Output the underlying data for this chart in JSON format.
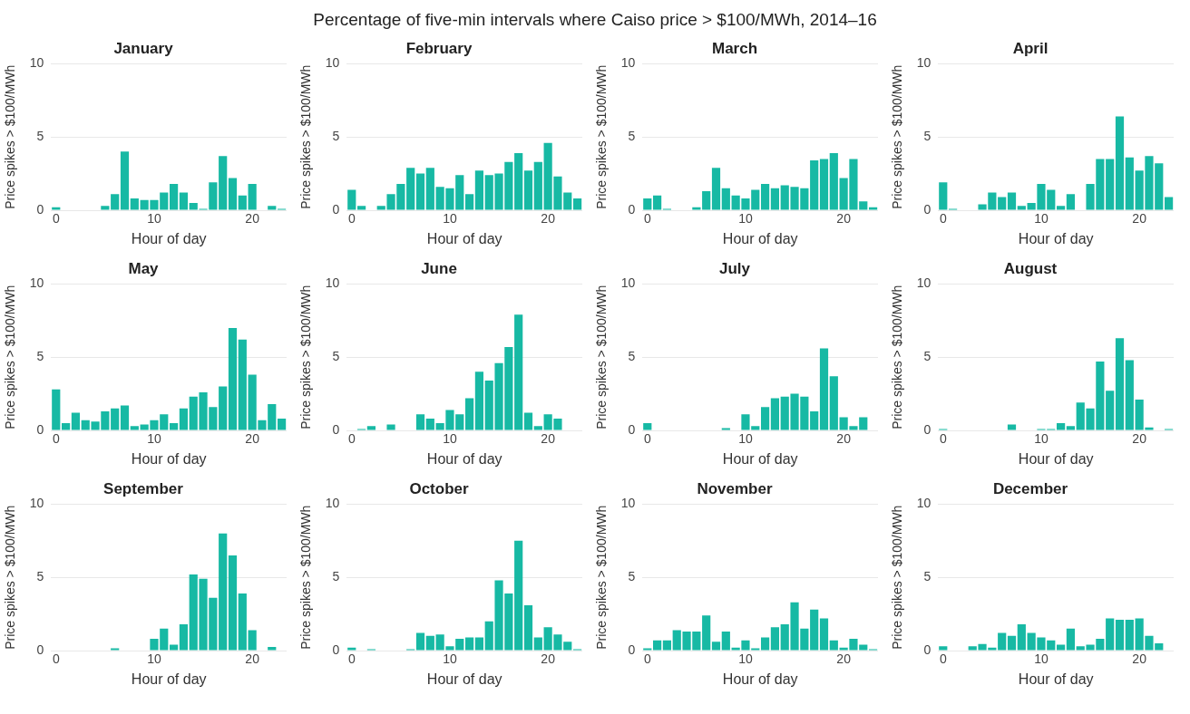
{
  "chart_data": [
    {
      "type": "bar",
      "annotations": [
        "Percentage of five-min intervals where Caiso price > $100/MWh, 2014–16"
      ],
      "title": "January",
      "xlabel": "Hour of day",
      "ylabel": "Price spikes > $100/MWh",
      "x": [
        0,
        1,
        2,
        3,
        4,
        5,
        6,
        7,
        8,
        9,
        10,
        11,
        12,
        13,
        14,
        15,
        16,
        17,
        18,
        19,
        20,
        21,
        22,
        23
      ],
      "values": [
        0.2,
        null,
        null,
        null,
        null,
        0.3,
        1.1,
        4.0,
        0.8,
        0.7,
        0.7,
        1.2,
        1.8,
        1.2,
        0.5,
        0.1,
        1.9,
        3.7,
        2.2,
        1.0,
        1.8,
        null,
        0.3,
        0.1
      ],
      "color": "#17b9a4",
      "xlim": [
        -0.5,
        23.5
      ],
      "xticks": [
        0,
        10,
        20
      ],
      "ylim": [
        0,
        10
      ],
      "yticks": [
        0,
        5,
        10
      ],
      "grid": "y"
    },
    {
      "type": "bar",
      "title": "February",
      "xlabel": "Hour of day",
      "ylabel": "Price spikes > $100/MWh",
      "x": [
        0,
        1,
        2,
        3,
        4,
        5,
        6,
        7,
        8,
        9,
        10,
        11,
        12,
        13,
        14,
        15,
        16,
        17,
        18,
        19,
        20,
        21,
        22,
        23
      ],
      "values": [
        1.4,
        0.3,
        null,
        0.3,
        1.1,
        1.8,
        2.9,
        2.5,
        2.9,
        1.6,
        1.5,
        2.4,
        1.1,
        2.7,
        2.4,
        2.5,
        3.3,
        3.9,
        2.7,
        3.3,
        4.6,
        2.3,
        1.2,
        0.8
      ],
      "color": "#17b9a4",
      "xlim": [
        -0.5,
        23.5
      ],
      "xticks": [
        0,
        10,
        20
      ],
      "ylim": [
        0,
        10
      ],
      "yticks": [
        0,
        5,
        10
      ],
      "grid": "y"
    },
    {
      "type": "bar",
      "title": "March",
      "xlabel": "Hour of day",
      "ylabel": "Price spikes > $100/MWh",
      "x": [
        0,
        1,
        2,
        3,
        4,
        5,
        6,
        7,
        8,
        9,
        10,
        11,
        12,
        13,
        14,
        15,
        16,
        17,
        18,
        19,
        20,
        21,
        22,
        23
      ],
      "values": [
        0.8,
        1.0,
        0.1,
        null,
        null,
        0.2,
        1.3,
        2.9,
        1.5,
        1.0,
        0.8,
        1.4,
        1.8,
        1.5,
        1.7,
        1.6,
        1.5,
        3.4,
        3.5,
        3.9,
        2.2,
        3.5,
        0.6,
        0.2
      ],
      "color": "#17b9a4",
      "xlim": [
        -0.5,
        23.5
      ],
      "xticks": [
        0,
        10,
        20
      ],
      "ylim": [
        0,
        10
      ],
      "yticks": [
        0,
        5,
        10
      ],
      "grid": "y"
    },
    {
      "type": "bar",
      "title": "April",
      "xlabel": "Hour of day",
      "ylabel": "Price spikes > $100/MWh",
      "x": [
        0,
        1,
        2,
        3,
        4,
        5,
        6,
        7,
        8,
        9,
        10,
        11,
        12,
        13,
        14,
        15,
        16,
        17,
        18,
        19,
        20,
        21,
        22,
        23
      ],
      "values": [
        1.9,
        0.1,
        null,
        null,
        0.4,
        1.2,
        0.9,
        1.2,
        0.3,
        0.5,
        1.8,
        1.4,
        0.3,
        1.1,
        null,
        1.8,
        3.5,
        3.5,
        6.4,
        3.6,
        2.7,
        3.7,
        3.2,
        0.9
      ],
      "color": "#17b9a4",
      "xlim": [
        -0.5,
        23.5
      ],
      "xticks": [
        0,
        10,
        20
      ],
      "ylim": [
        0,
        10
      ],
      "yticks": [
        0,
        5,
        10
      ],
      "grid": "y"
    },
    {
      "type": "bar",
      "title": "May",
      "xlabel": "Hour of day",
      "ylabel": "Price spikes > $100/MWh",
      "x": [
        0,
        1,
        2,
        3,
        4,
        5,
        6,
        7,
        8,
        9,
        10,
        11,
        12,
        13,
        14,
        15,
        16,
        17,
        18,
        19,
        20,
        21,
        22,
        23
      ],
      "values": [
        2.8,
        0.5,
        1.2,
        0.7,
        0.6,
        1.3,
        1.5,
        1.7,
        0.3,
        0.4,
        0.7,
        1.1,
        0.5,
        1.5,
        2.3,
        2.6,
        1.6,
        3.0,
        7.0,
        6.2,
        3.8,
        0.7,
        1.8,
        0.8
      ],
      "color": "#17b9a4",
      "xlim": [
        -0.5,
        23.5
      ],
      "xticks": [
        0,
        10,
        20
      ],
      "ylim": [
        0,
        10
      ],
      "yticks": [
        0,
        5,
        10
      ],
      "grid": "y"
    },
    {
      "type": "bar",
      "title": "June",
      "xlabel": "Hour of day",
      "ylabel": "Price spikes > $100/MWh",
      "x": [
        1,
        2,
        3,
        4,
        5,
        6,
        7,
        8,
        9,
        10,
        11,
        12,
        13,
        14,
        15,
        16,
        17,
        18,
        19,
        20,
        21
      ],
      "values": [
        0.1,
        0.3,
        null,
        0.4,
        null,
        null,
        1.1,
        0.8,
        0.5,
        1.4,
        1.1,
        2.2,
        4.0,
        3.4,
        4.6,
        5.7,
        7.9,
        1.2,
        0.3,
        1.1,
        0.8
      ],
      "color": "#17b9a4",
      "xlim": [
        -0.5,
        23.5
      ],
      "xticks": [
        0,
        10,
        20
      ],
      "ylim": [
        0,
        10
      ],
      "yticks": [
        0,
        5,
        10
      ],
      "grid": "y"
    },
    {
      "type": "bar",
      "title": "July",
      "xlabel": "Hour of day",
      "ylabel": "Price spikes > $100/MWh",
      "x": [
        0,
        1,
        2,
        3,
        4,
        5,
        6,
        7,
        8,
        9,
        10,
        11,
        12,
        13,
        14,
        15,
        16,
        17,
        18,
        19,
        20,
        21,
        22
      ],
      "values": [
        0.5,
        null,
        null,
        null,
        null,
        null,
        null,
        null,
        0.15,
        null,
        1.1,
        0.3,
        1.6,
        2.2,
        2.3,
        2.5,
        2.3,
        1.3,
        5.6,
        3.7,
        0.9,
        0.3,
        0.9
      ],
      "color": "#17b9a4",
      "xlim": [
        -0.5,
        23.5
      ],
      "xticks": [
        0,
        10,
        20
      ],
      "ylim": [
        0,
        10
      ],
      "yticks": [
        0,
        5,
        10
      ],
      "grid": "y"
    },
    {
      "type": "bar",
      "title": "August",
      "xlabel": "Hour of day",
      "ylabel": "Price spikes > $100/MWh",
      "x": [
        0,
        1,
        2,
        3,
        4,
        5,
        6,
        7,
        8,
        9,
        10,
        11,
        12,
        13,
        14,
        15,
        16,
        17,
        18,
        19,
        20,
        21,
        22,
        23
      ],
      "values": [
        0.1,
        null,
        null,
        null,
        null,
        null,
        null,
        0.4,
        null,
        null,
        0.1,
        0.1,
        0.5,
        0.3,
        1.9,
        1.5,
        4.7,
        2.7,
        6.3,
        4.8,
        2.1,
        0.2,
        null,
        0.1
      ],
      "color": "#17b9a4",
      "xlim": [
        -0.5,
        23.5
      ],
      "xticks": [
        0,
        10,
        20
      ],
      "ylim": [
        0,
        10
      ],
      "yticks": [
        0,
        5,
        10
      ],
      "grid": "y"
    },
    {
      "type": "bar",
      "title": "September",
      "xlabel": "Hour of day",
      "ylabel": "Price spikes > $100/MWh",
      "x": [
        6,
        7,
        8,
        9,
        10,
        11,
        12,
        13,
        14,
        15,
        16,
        17,
        18,
        19,
        20,
        21,
        22
      ],
      "values": [
        0.15,
        null,
        null,
        null,
        0.8,
        1.5,
        0.4,
        1.8,
        5.2,
        4.9,
        3.6,
        8.0,
        6.5,
        3.9,
        1.4,
        null,
        0.25
      ],
      "color": "#17b9a4",
      "xlim": [
        -0.5,
        23.5
      ],
      "xticks": [
        0,
        10,
        20
      ],
      "ylim": [
        0,
        10
      ],
      "yticks": [
        0,
        5,
        10
      ],
      "grid": "y"
    },
    {
      "type": "bar",
      "title": "October",
      "xlabel": "Hour of day",
      "ylabel": "Price spikes > $100/MWh",
      "x": [
        0,
        1,
        2,
        3,
        4,
        5,
        6,
        7,
        8,
        9,
        10,
        11,
        12,
        13,
        14,
        15,
        16,
        17,
        18,
        19,
        20,
        21,
        22,
        23
      ],
      "values": [
        0.2,
        null,
        0.1,
        null,
        null,
        null,
        0.1,
        1.2,
        1.0,
        1.1,
        0.3,
        0.8,
        0.9,
        0.9,
        2.0,
        4.8,
        3.9,
        7.5,
        3.1,
        0.9,
        1.6,
        1.1,
        0.6,
        0.1
      ],
      "color": "#17b9a4",
      "xlim": [
        -0.5,
        23.5
      ],
      "xticks": [
        0,
        10,
        20
      ],
      "ylim": [
        0,
        10
      ],
      "yticks": [
        0,
        5,
        10
      ],
      "grid": "y"
    },
    {
      "type": "bar",
      "title": "November",
      "xlabel": "Hour of day",
      "ylabel": "Price spikes > $100/MWh",
      "x": [
        0,
        1,
        2,
        3,
        4,
        5,
        6,
        7,
        8,
        9,
        10,
        11,
        12,
        13,
        14,
        15,
        16,
        17,
        18,
        19,
        20,
        21,
        22,
        23
      ],
      "values": [
        0.15,
        0.7,
        0.7,
        1.4,
        1.3,
        1.3,
        2.4,
        0.6,
        1.3,
        0.2,
        0.7,
        0.15,
        0.9,
        1.6,
        1.8,
        3.3,
        1.5,
        2.8,
        2.2,
        0.7,
        0.2,
        0.8,
        0.4,
        0.1
      ],
      "color": "#17b9a4",
      "xlim": [
        -0.5,
        23.5
      ],
      "xticks": [
        0,
        10,
        20
      ],
      "ylim": [
        0,
        10
      ],
      "yticks": [
        0,
        5,
        10
      ],
      "grid": "y"
    },
    {
      "type": "bar",
      "title": "December",
      "xlabel": "Hour of day",
      "ylabel": "Price spikes > $100/MWh",
      "x": [
        0,
        1,
        2,
        3,
        4,
        5,
        6,
        7,
        8,
        9,
        10,
        11,
        12,
        13,
        14,
        15,
        16,
        17,
        18,
        19,
        20,
        21,
        22
      ],
      "values": [
        0.3,
        null,
        null,
        0.3,
        0.45,
        0.2,
        1.2,
        1.0,
        1.8,
        1.2,
        0.9,
        0.7,
        0.4,
        1.5,
        0.3,
        0.4,
        0.8,
        2.2,
        2.1,
        2.1,
        2.2,
        1.0,
        0.5
      ],
      "color": "#17b9a4",
      "xlim": [
        -0.5,
        23.5
      ],
      "xticks": [
        0,
        10,
        20
      ],
      "ylim": [
        0,
        10
      ],
      "yticks": [
        0,
        5,
        10
      ],
      "grid": "y"
    }
  ]
}
